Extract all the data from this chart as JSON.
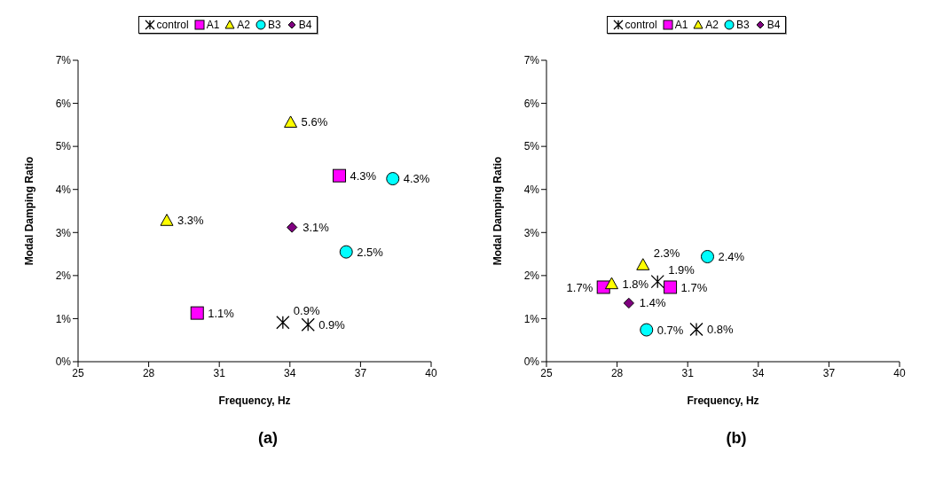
{
  "chart_data": [
    {
      "type": "scatter",
      "xlabel": "Frequency, Hz",
      "ylabel": "Modal Damping Ratio",
      "xlim": [
        25,
        40
      ],
      "xticks": [
        25,
        28,
        31,
        34,
        37,
        40
      ],
      "ylim": [
        0,
        7
      ],
      "yticks": [
        {
          "value": 0,
          "label": "0%"
        },
        {
          "value": 1,
          "label": "1%"
        },
        {
          "value": 2,
          "label": "2%"
        },
        {
          "value": 3,
          "label": "3%"
        },
        {
          "value": 4,
          "label": "4%"
        },
        {
          "value": 5,
          "label": "5%"
        },
        {
          "value": 6,
          "label": "6%"
        },
        {
          "value": 7,
          "label": "7%"
        }
      ],
      "grid": false,
      "legend": "top",
      "annotations": [
        "(a)"
      ],
      "series": [
        {
          "name": "control",
          "color": "#000000",
          "marker": "cross",
          "x": [
            33.7,
            34.77
          ],
          "values": [
            0.91,
            0.86
          ],
          "value_labels": [
            "0.9%",
            "0.9%"
          ]
        },
        {
          "name": "A1",
          "color": "#ff00ff",
          "marker": "square",
          "x": [
            30.06,
            36.1
          ],
          "values": [
            1.13,
            4.32
          ],
          "value_labels": [
            "1.1%",
            "4.3%"
          ]
        },
        {
          "name": "A2",
          "color": "#ffff00",
          "marker": "triangle",
          "x": [
            28.77,
            34.03
          ],
          "values": [
            3.28,
            5.56
          ],
          "value_labels": [
            "3.3%",
            "5.6%"
          ]
        },
        {
          "name": "B3",
          "color": "#00ffff",
          "marker": "circle",
          "x": [
            38.37,
            36.39
          ],
          "values": [
            4.25,
            2.55
          ],
          "value_labels": [
            "4.3%",
            "2.5%"
          ]
        },
        {
          "name": "B4",
          "color": "#800080",
          "marker": "diamond",
          "x": [
            34.09
          ],
          "values": [
            3.12
          ],
          "value_labels": [
            "3.1%"
          ]
        }
      ]
    },
    {
      "type": "scatter",
      "xlabel": "Frequency, Hz",
      "ylabel": "Modal Damping Ratio",
      "xlim": [
        25,
        40
      ],
      "xticks": [
        25,
        28,
        31,
        34,
        37,
        40
      ],
      "ylim": [
        0,
        7
      ],
      "yticks": [
        {
          "value": 0,
          "label": "0%"
        },
        {
          "value": 1,
          "label": "1%"
        },
        {
          "value": 2,
          "label": "2%"
        },
        {
          "value": 3,
          "label": "3%"
        },
        {
          "value": 4,
          "label": "4%"
        },
        {
          "value": 5,
          "label": "5%"
        },
        {
          "value": 6,
          "label": "6%"
        },
        {
          "value": 7,
          "label": "7%"
        }
      ],
      "grid": false,
      "legend": "top",
      "annotations": [
        "(b)"
      ],
      "series": [
        {
          "name": "control",
          "color": "#000000",
          "marker": "cross",
          "x": [
            29.72,
            31.37
          ],
          "values": [
            1.86,
            0.75
          ],
          "value_labels": [
            "1.9%",
            "0.8%"
          ]
        },
        {
          "name": "A1",
          "color": "#ff00ff",
          "marker": "square",
          "x": [
            27.42,
            30.26
          ],
          "values": [
            1.73,
            1.73
          ],
          "value_labels": [
            "1.7%",
            "1.7%"
          ]
        },
        {
          "name": "A2",
          "color": "#ffff00",
          "marker": "triangle",
          "x": [
            27.77,
            29.1
          ],
          "values": [
            1.81,
            2.25
          ],
          "value_labels": [
            "1.8%",
            "2.3%"
          ]
        },
        {
          "name": "B3",
          "color": "#00ffff",
          "marker": "circle",
          "x": [
            29.25,
            31.84
          ],
          "values": [
            0.74,
            2.44
          ],
          "value_labels": [
            "0.7%",
            "2.4%"
          ]
        },
        {
          "name": "B4",
          "color": "#800080",
          "marker": "diamond",
          "x": [
            28.5
          ],
          "values": [
            1.36
          ],
          "value_labels": [
            "1.4%"
          ]
        }
      ]
    }
  ]
}
